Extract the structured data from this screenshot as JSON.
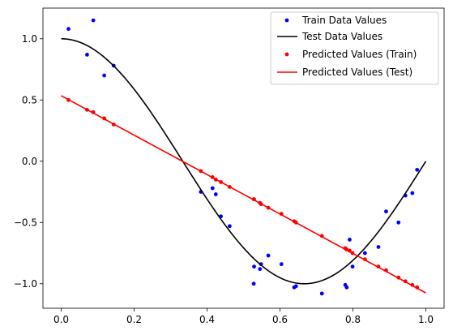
{
  "chart_data": {
    "type": "scatter",
    "title": "",
    "xlabel": "",
    "ylabel": "",
    "xlim": [
      -0.05,
      1.05
    ],
    "ylim": [
      -1.2,
      1.25
    ],
    "grid": false,
    "legend_position": "top-right",
    "x_ticks": [
      0.0,
      0.2,
      0.4,
      0.6,
      0.8,
      1.0
    ],
    "x_tick_labels": [
      "0.0",
      "0.2",
      "0.4",
      "0.6",
      "0.8",
      "1.0"
    ],
    "y_ticks": [
      1.0,
      0.5,
      0.0,
      -0.5,
      -1.0
    ],
    "y_tick_labels": [
      "1.0",
      "0.5",
      "0.0",
      "−0.5",
      "−1.0"
    ],
    "series": [
      {
        "name": "Train Data Values",
        "kind": "points",
        "color": "#0000ff",
        "x": [
          0.02,
          0.071,
          0.088,
          0.118,
          0.144,
          0.383,
          0.415,
          0.424,
          0.438,
          0.462,
          0.529,
          0.528,
          0.545,
          0.548,
          0.568,
          0.604,
          0.639,
          0.644,
          0.715,
          0.779,
          0.783,
          0.791,
          0.799,
          0.833,
          0.87,
          0.891,
          0.925,
          0.944,
          0.963,
          0.976
        ],
        "y": [
          1.08,
          0.87,
          1.15,
          0.7,
          0.78,
          -0.25,
          -0.22,
          -0.27,
          -0.45,
          -0.53,
          -0.86,
          -1.0,
          -0.88,
          -0.84,
          -0.77,
          -0.84,
          -1.03,
          -1.02,
          -1.08,
          -1.01,
          -1.03,
          -0.64,
          -0.86,
          -0.75,
          -0.7,
          -0.41,
          -0.5,
          -0.28,
          -0.26,
          -0.07
        ]
      },
      {
        "name": "Test Data Values",
        "kind": "line",
        "color": "#000000",
        "function": "cos(1.5*pi*x)",
        "x_range": [
          0.0,
          1.0
        ]
      },
      {
        "name": "Predicted Values (Train)",
        "kind": "points",
        "color": "#ff0000",
        "x": [
          0.02,
          0.071,
          0.088,
          0.118,
          0.144,
          0.383,
          0.415,
          0.424,
          0.438,
          0.462,
          0.529,
          0.528,
          0.545,
          0.548,
          0.568,
          0.604,
          0.639,
          0.644,
          0.715,
          0.779,
          0.783,
          0.791,
          0.799,
          0.833,
          0.87,
          0.891,
          0.925,
          0.944,
          0.963,
          0.976
        ],
        "y": [
          0.5,
          0.42,
          0.4,
          0.35,
          0.3,
          -0.08,
          -0.13,
          -0.15,
          -0.17,
          -0.21,
          -0.31,
          -0.31,
          -0.34,
          -0.35,
          -0.38,
          -0.43,
          -0.49,
          -0.5,
          -0.61,
          -0.71,
          -0.72,
          -0.73,
          -0.75,
          -0.8,
          -0.86,
          -0.89,
          -0.95,
          -0.98,
          -1.01,
          -1.03
        ]
      },
      {
        "name": "Predicted Values (Test)",
        "kind": "line",
        "color": "#ff0000",
        "x": [
          0.0,
          1.0
        ],
        "y": [
          0.535,
          -1.075
        ]
      }
    ]
  }
}
